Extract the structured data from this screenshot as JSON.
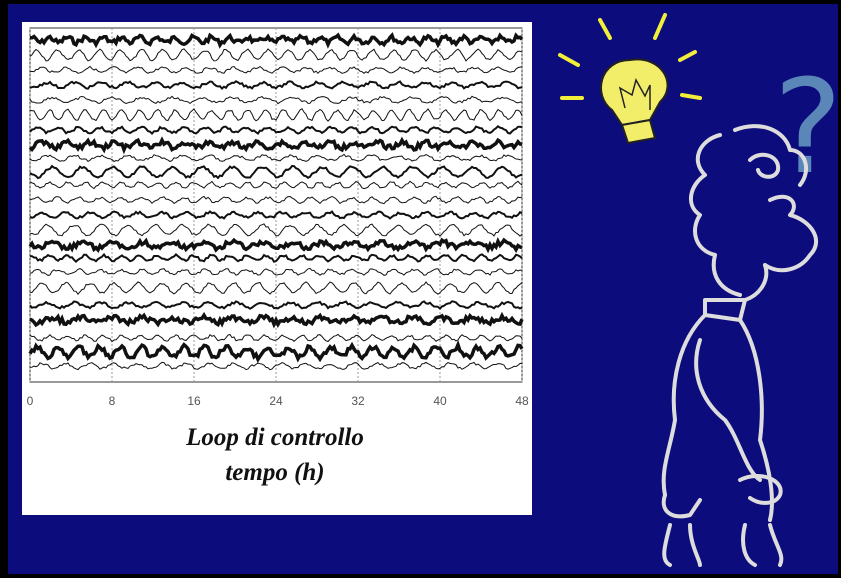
{
  "figure": {
    "xlim": [
      0,
      48
    ],
    "xticks": [
      0,
      8,
      16,
      24,
      32,
      40,
      48
    ],
    "caption": [
      "Loop di controllo",
      "tempo (h)"
    ]
  },
  "question_mark": "?"
}
